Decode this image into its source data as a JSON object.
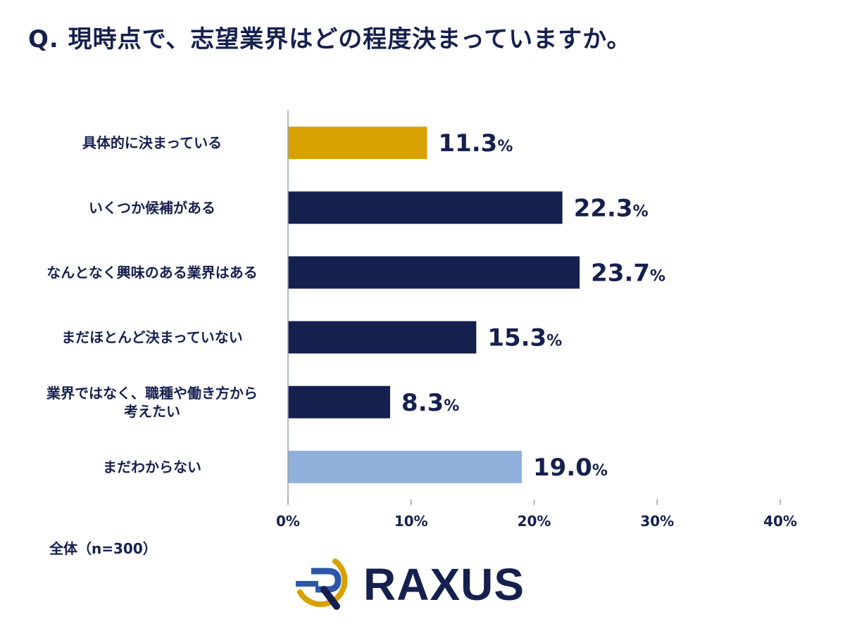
{
  "title": "Q. 現時点で、志望業界はどの程度決まっていますか。",
  "sample_note": "全体（n=300）",
  "logo": {
    "text": "RAXUS"
  },
  "chart_data": {
    "type": "bar",
    "orientation": "horizontal",
    "categories": [
      [
        "具体的に決まっている"
      ],
      [
        "いくつか候補がある"
      ],
      [
        "なんとなく興味のある業界はある"
      ],
      [
        "まだほとんど決まっていない"
      ],
      [
        "業界ではなく、職種や働き方から",
        "考えたい"
      ],
      [
        "まだわからない"
      ]
    ],
    "values": [
      11.3,
      22.3,
      23.7,
      15.3,
      8.3,
      19.0
    ],
    "value_labels": [
      "11.3",
      "22.3",
      "23.7",
      "15.3",
      "8.3",
      "19.0"
    ],
    "value_unit": "%",
    "bar_colors": [
      "#d9a100",
      "#16204f",
      "#16204f",
      "#16204f",
      "#16204f",
      "#8fb0da"
    ],
    "xlim": [
      0,
      40
    ],
    "xticks": [
      0,
      10,
      20,
      30,
      40
    ],
    "xtick_labels": [
      "0%",
      "10%",
      "20%",
      "30%",
      "40%"
    ],
    "grid": false
  }
}
